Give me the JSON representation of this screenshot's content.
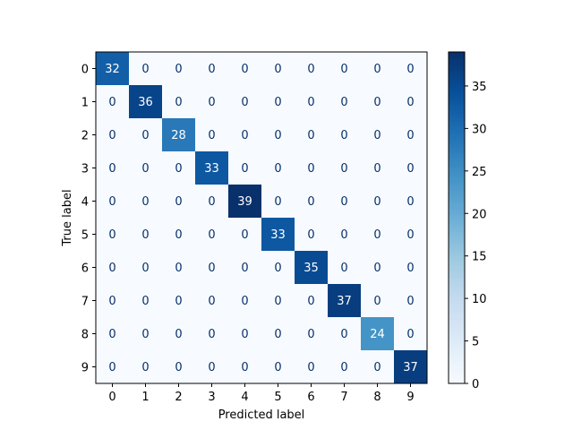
{
  "chart_data": {
    "type": "heatmap",
    "title": "",
    "xlabel": "Predicted label",
    "ylabel": "True label",
    "x_categories": [
      "0",
      "1",
      "2",
      "3",
      "4",
      "5",
      "6",
      "7",
      "8",
      "9"
    ],
    "y_categories": [
      "0",
      "1",
      "2",
      "3",
      "4",
      "5",
      "6",
      "7",
      "8",
      "9"
    ],
    "matrix": [
      [
        32,
        0,
        0,
        0,
        0,
        0,
        0,
        0,
        0,
        0
      ],
      [
        0,
        36,
        0,
        0,
        0,
        0,
        0,
        0,
        0,
        0
      ],
      [
        0,
        0,
        28,
        0,
        0,
        0,
        0,
        0,
        0,
        0
      ],
      [
        0,
        0,
        0,
        33,
        0,
        0,
        0,
        0,
        0,
        0
      ],
      [
        0,
        0,
        0,
        0,
        39,
        0,
        0,
        0,
        0,
        0
      ],
      [
        0,
        0,
        0,
        0,
        0,
        33,
        0,
        0,
        0,
        0
      ],
      [
        0,
        0,
        0,
        0,
        0,
        0,
        35,
        0,
        0,
        0
      ],
      [
        0,
        0,
        0,
        0,
        0,
        0,
        0,
        37,
        0,
        0
      ],
      [
        0,
        0,
        0,
        0,
        0,
        0,
        0,
        0,
        24,
        0
      ],
      [
        0,
        0,
        0,
        0,
        0,
        0,
        0,
        0,
        0,
        37
      ]
    ],
    "colormap": "Blues",
    "color_range": [
      0,
      39
    ],
    "colorbar": {
      "ticks": [
        0,
        5,
        10,
        15,
        20,
        25,
        30,
        35
      ],
      "placement": "right"
    },
    "grid": false
  }
}
